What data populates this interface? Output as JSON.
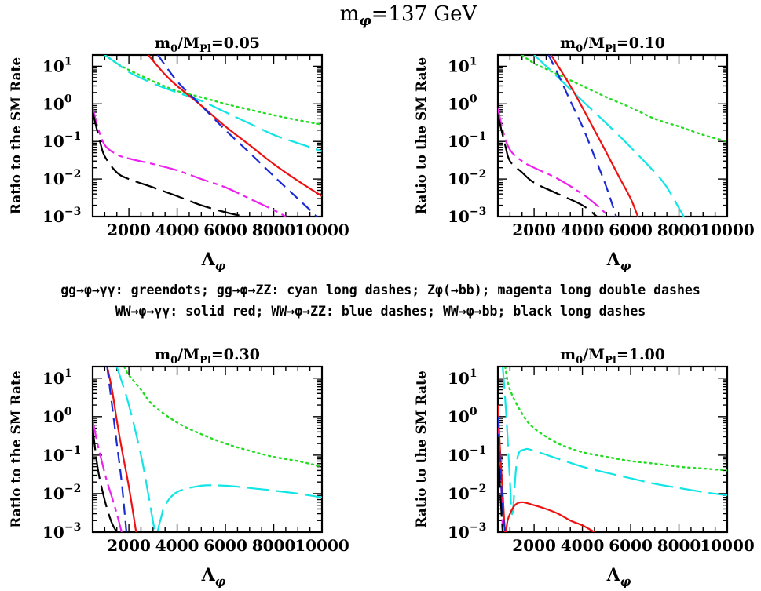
{
  "figure": {
    "title": "m_φ=137 GeV",
    "caption_lines": [
      "gg→φ→γγ: greendots; gg→φ→ZZ: cyan long dashes; Zφ(→bb); magenta long double dashes",
      "WW→φ→γγ: solid red; WW→φ→ZZ: blue dashes; WW→φ→bb; black long dashes"
    ]
  },
  "colors": {
    "gg_gamgam": "#22dd22",
    "gg_ZZ": "#11e5e5",
    "Zphi_bb": "#ee22ee",
    "WW_gamgam": "#ee1111",
    "WW_ZZ": "#1a2bd6",
    "WW_bb": "#000000"
  },
  "chart_data": [
    {
      "type": "line",
      "title": "m0/MPl=0.05",
      "xlabel": "Λφ",
      "ylabel": "Ratio to the SM Rate",
      "xlim": [
        500,
        10000
      ],
      "ylim": [
        0.001,
        20
      ],
      "yscale": "log",
      "xticks": [
        2000,
        4000,
        6000,
        8000,
        10000
      ],
      "yticks": [
        "10^1",
        "10^0",
        "10^-1",
        "10^-2",
        "10^-3"
      ],
      "series": [
        {
          "key": "gg_gamgam",
          "style": "dotted",
          "x": [
            1000,
            1500,
            2000,
            3000,
            4000,
            5000,
            6000,
            7000,
            8000,
            9000,
            10000
          ],
          "y": [
            20,
            12,
            8,
            4,
            2.2,
            1.5,
            1.0,
            0.7,
            0.5,
            0.37,
            0.28
          ]
        },
        {
          "key": "gg_ZZ",
          "style": "longdash",
          "x": [
            1000,
            1500,
            2000,
            3000,
            4000,
            5000,
            6000,
            7000,
            8000,
            9000,
            10000
          ],
          "y": [
            20,
            12,
            7,
            3.5,
            2.0,
            1.2,
            0.6,
            0.3,
            0.15,
            0.09,
            0.055
          ]
        },
        {
          "key": "Zphi_bb",
          "style": "dashdot",
          "x": [
            500,
            700,
            1000,
            1500,
            2000,
            3000,
            4000,
            5000,
            6000,
            7000,
            8000,
            8500
          ],
          "y": [
            0.8,
            0.25,
            0.08,
            0.045,
            0.035,
            0.025,
            0.017,
            0.01,
            0.006,
            0.003,
            0.0015,
            0.001
          ]
        },
        {
          "key": "WW_gamgam",
          "style": "solid",
          "x": [
            2800,
            3500,
            4000,
            5000,
            6000,
            7000,
            8000,
            9000,
            10000
          ],
          "y": [
            20,
            6,
            3,
            0.9,
            0.25,
            0.08,
            0.025,
            0.009,
            0.0035
          ]
        },
        {
          "key": "WW_ZZ",
          "style": "dashed",
          "x": [
            3200,
            4000,
            5000,
            6000,
            7000,
            8000,
            9000,
            9800
          ],
          "y": [
            20,
            4,
            0.9,
            0.2,
            0.05,
            0.012,
            0.003,
            0.001
          ]
        },
        {
          "key": "WW_bb",
          "style": "longdash",
          "x": [
            500,
            800,
            1000,
            1500,
            2000,
            3000,
            4000,
            5000,
            6000,
            6800
          ],
          "y": [
            0.6,
            0.1,
            0.04,
            0.015,
            0.01,
            0.006,
            0.0035,
            0.002,
            0.0013,
            0.001
          ]
        }
      ]
    },
    {
      "type": "line",
      "title": "m0/MPl=0.10",
      "xlabel": "Λφ",
      "ylabel": "Ratio to the SM Rate",
      "xlim": [
        500,
        10000
      ],
      "ylim": [
        0.001,
        20
      ],
      "yscale": "log",
      "xticks": [
        2000,
        4000,
        6000,
        8000,
        10000
      ],
      "yticks": [
        "10^1",
        "10^0",
        "10^-1",
        "10^-2",
        "10^-3"
      ],
      "series": [
        {
          "key": "gg_gamgam",
          "style": "dotted",
          "x": [
            1500,
            2000,
            3000,
            4000,
            5000,
            6000,
            7000,
            8000,
            9000,
            10000
          ],
          "y": [
            20,
            12,
            6,
            3,
            1.5,
            0.8,
            0.4,
            0.25,
            0.15,
            0.1
          ]
        },
        {
          "key": "gg_ZZ",
          "style": "longdash",
          "x": [
            2000,
            3000,
            4000,
            5000,
            6000,
            7000,
            7500,
            8200
          ],
          "y": [
            20,
            5,
            1.2,
            0.3,
            0.07,
            0.015,
            0.006,
            0.001
          ]
        },
        {
          "key": "Zphi_bb",
          "style": "dashdot",
          "x": [
            500,
            700,
            1000,
            1500,
            2000,
            3000,
            4000,
            4600,
            5100
          ],
          "y": [
            0.8,
            0.2,
            0.06,
            0.03,
            0.02,
            0.01,
            0.004,
            0.002,
            0.001
          ]
        },
        {
          "key": "WW_gamgam",
          "style": "solid",
          "x": [
            2700,
            3000,
            3500,
            4000,
            4500,
            5000,
            5500,
            6000,
            6300
          ],
          "y": [
            20,
            10,
            3,
            0.8,
            0.2,
            0.05,
            0.012,
            0.003,
            0.001
          ]
        },
        {
          "key": "WW_ZZ",
          "style": "dashed",
          "x": [
            2600,
            3000,
            3500,
            4000,
            4500,
            5000,
            5400
          ],
          "y": [
            20,
            6,
            1.2,
            0.25,
            0.04,
            0.006,
            0.001
          ]
        },
        {
          "key": "WW_bb",
          "style": "longdash",
          "x": [
            500,
            800,
            1000,
            1500,
            2000,
            3000,
            4000,
            4600
          ],
          "y": [
            0.5,
            0.08,
            0.03,
            0.015,
            0.008,
            0.004,
            0.002,
            0.001
          ]
        }
      ]
    },
    {
      "type": "line",
      "title": "m0/MPl=0.30",
      "xlabel": "Λφ",
      "ylabel": "Ratio to the SM Rate",
      "xlim": [
        500,
        10000
      ],
      "ylim": [
        0.001,
        20
      ],
      "yscale": "log",
      "xticks": [
        2000,
        4000,
        6000,
        8000,
        10000
      ],
      "yticks": [
        "10^1",
        "10^0",
        "10^-1",
        "10^-2",
        "10^-3"
      ],
      "series": [
        {
          "key": "gg_gamgam",
          "style": "dotted",
          "x": [
            1800,
            2000,
            2500,
            3000,
            4000,
            5000,
            6000,
            7000,
            8000,
            9000,
            10000
          ],
          "y": [
            20,
            12,
            5,
            2,
            0.7,
            0.35,
            0.2,
            0.13,
            0.09,
            0.07,
            0.05
          ]
        },
        {
          "key": "gg_ZZ",
          "style": "longdash",
          "x": [
            1500,
            2000,
            2500,
            2800,
            3100,
            3300,
            3500,
            4000,
            5000,
            6000,
            7000,
            8000,
            9000,
            10000
          ],
          "y": [
            20,
            2,
            0.1,
            0.01,
            0.001,
            0.002,
            0.005,
            0.011,
            0.016,
            0.016,
            0.014,
            0.012,
            0.01,
            0.008
          ]
        },
        {
          "key": "Zphi_bb",
          "style": "dashdot",
          "x": [
            500,
            700,
            900,
            1100,
            1300,
            1500,
            1700
          ],
          "y": [
            0.8,
            0.2,
            0.06,
            0.02,
            0.008,
            0.003,
            0.001
          ]
        },
        {
          "key": "WW_gamgam",
          "style": "solid",
          "x": [
            1100,
            1300,
            1500,
            1700,
            2000,
            2300
          ],
          "y": [
            20,
            5,
            0.8,
            0.15,
            0.015,
            0.001
          ]
        },
        {
          "key": "WW_ZZ",
          "style": "dashed",
          "x": [
            1100,
            1300,
            1500,
            1700,
            1900
          ],
          "y": [
            20,
            2,
            0.2,
            0.02,
            0.001
          ]
        },
        {
          "key": "WW_bb",
          "style": "longdash",
          "x": [
            500,
            700,
            900,
            1100,
            1300,
            1500
          ],
          "y": [
            0.5,
            0.05,
            0.012,
            0.004,
            0.0017,
            0.001
          ]
        }
      ]
    },
    {
      "type": "line",
      "title": "m0/MPl=1.00",
      "xlabel": "Λφ",
      "ylabel": "Ratio to the SM Rate",
      "xlim": [
        500,
        10000
      ],
      "ylim": [
        0.001,
        20
      ],
      "yscale": "log",
      "xticks": [
        2000,
        4000,
        6000,
        8000,
        10000
      ],
      "yticks": [
        "10^1",
        "10^0",
        "10^-1",
        "10^-2",
        "10^-3"
      ],
      "series": [
        {
          "key": "gg_gamgam",
          "style": "dotted",
          "x": [
            800,
            1000,
            1500,
            2000,
            3000,
            4000,
            5000,
            6000,
            7000,
            8000,
            9000,
            10000
          ],
          "y": [
            20,
            5,
            1.2,
            0.5,
            0.2,
            0.12,
            0.09,
            0.07,
            0.06,
            0.05,
            0.045,
            0.04
          ]
        },
        {
          "key": "gg_ZZ",
          "style": "longdash",
          "x": [
            700,
            800,
            900,
            1000,
            1100,
            1300,
            1600,
            2000,
            3000,
            4000,
            5000,
            6000,
            7000,
            8000,
            9000,
            10000
          ],
          "y": [
            20,
            3,
            0.3,
            0.02,
            0.003,
            0.08,
            0.14,
            0.13,
            0.08,
            0.05,
            0.035,
            0.025,
            0.018,
            0.014,
            0.011,
            0.009
          ]
        },
        {
          "key": "Zphi_bb",
          "style": "dashdot",
          "x": [
            500,
            550,
            600,
            650,
            700
          ],
          "y": [
            0.8,
            0.2,
            0.05,
            0.01,
            0.001
          ]
        },
        {
          "key": "WW_gamgam",
          "style": "solid",
          "x": [
            500,
            600,
            700,
            800,
            900,
            1000,
            1200,
            1500,
            2000,
            2500,
            3000,
            3500,
            4000,
            4500
          ],
          "y": [
            2,
            0.1,
            0.01,
            0.001,
            0.002,
            0.003,
            0.005,
            0.006,
            0.005,
            0.004,
            0.003,
            0.002,
            0.0015,
            0.001
          ]
        },
        {
          "key": "WW_ZZ",
          "style": "dashed",
          "x": [
            500,
            600,
            700,
            800
          ],
          "y": [
            1,
            0.05,
            0.004,
            0.001
          ]
        },
        {
          "key": "WW_bb",
          "style": "longdash",
          "x": [
            500,
            600,
            700
          ],
          "y": [
            0.3,
            0.01,
            0.001
          ]
        }
      ]
    }
  ]
}
